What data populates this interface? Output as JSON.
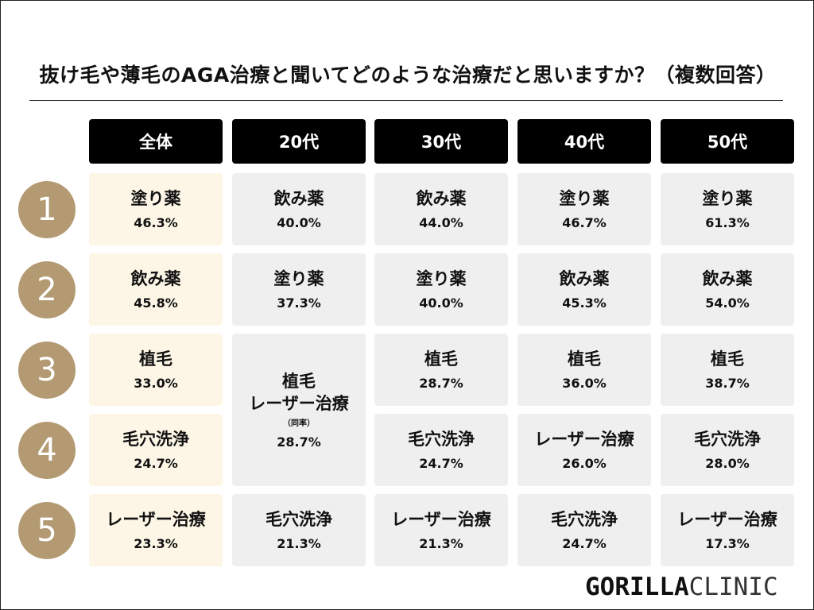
{
  "title": "抜け毛や薄毛のAGA治療と聞いてどのような治療だと思いますか？（複数回答）",
  "columns": [
    "全体",
    "20代",
    "30代",
    "40代",
    "50代"
  ],
  "ranks": [
    "1",
    "2",
    "3",
    "4",
    "5"
  ],
  "cells": {
    "overall": [
      {
        "item": "塗り薬",
        "pct": "46.3%"
      },
      {
        "item": "飲み薬",
        "pct": "45.8%"
      },
      {
        "item": "植毛",
        "pct": "33.0%"
      },
      {
        "item": "毛穴洗浄",
        "pct": "24.7%"
      },
      {
        "item": "レーザー治療",
        "pct": "23.3%"
      }
    ],
    "age20": [
      {
        "item": "飲み薬",
        "pct": "40.0%"
      },
      {
        "item": "塗り薬",
        "pct": "37.3%"
      },
      {
        "item": "植毛",
        "item2": "レーザー治療",
        "note": "（同率）",
        "pct": "28.7%"
      },
      {
        "item": "毛穴洗浄",
        "pct": "21.3%"
      }
    ],
    "age30": [
      {
        "item": "飲み薬",
        "pct": "44.0%"
      },
      {
        "item": "塗り薬",
        "pct": "40.0%"
      },
      {
        "item": "植毛",
        "pct": "28.7%"
      },
      {
        "item": "毛穴洗浄",
        "pct": "24.7%"
      },
      {
        "item": "レーザー治療",
        "pct": "21.3%"
      }
    ],
    "age40": [
      {
        "item": "塗り薬",
        "pct": "46.7%"
      },
      {
        "item": "飲み薬",
        "pct": "45.3%"
      },
      {
        "item": "植毛",
        "pct": "36.0%"
      },
      {
        "item": "レーザー治療",
        "pct": "26.0%"
      },
      {
        "item": "毛穴洗浄",
        "pct": "24.7%"
      }
    ],
    "age50": [
      {
        "item": "塗り薬",
        "pct": "61.3%"
      },
      {
        "item": "飲み薬",
        "pct": "54.0%"
      },
      {
        "item": "植毛",
        "pct": "38.7%"
      },
      {
        "item": "毛穴洗浄",
        "pct": "28.0%"
      },
      {
        "item": "レーザー治療",
        "pct": "17.3%"
      }
    ]
  },
  "logo": {
    "bold": "GORILLA",
    "light": "CLINIC"
  },
  "colors": {
    "rank_circle": "#b39a72",
    "overall_cell": "#fdf6e6",
    "cell": "#efefef",
    "header": "#000000"
  }
}
